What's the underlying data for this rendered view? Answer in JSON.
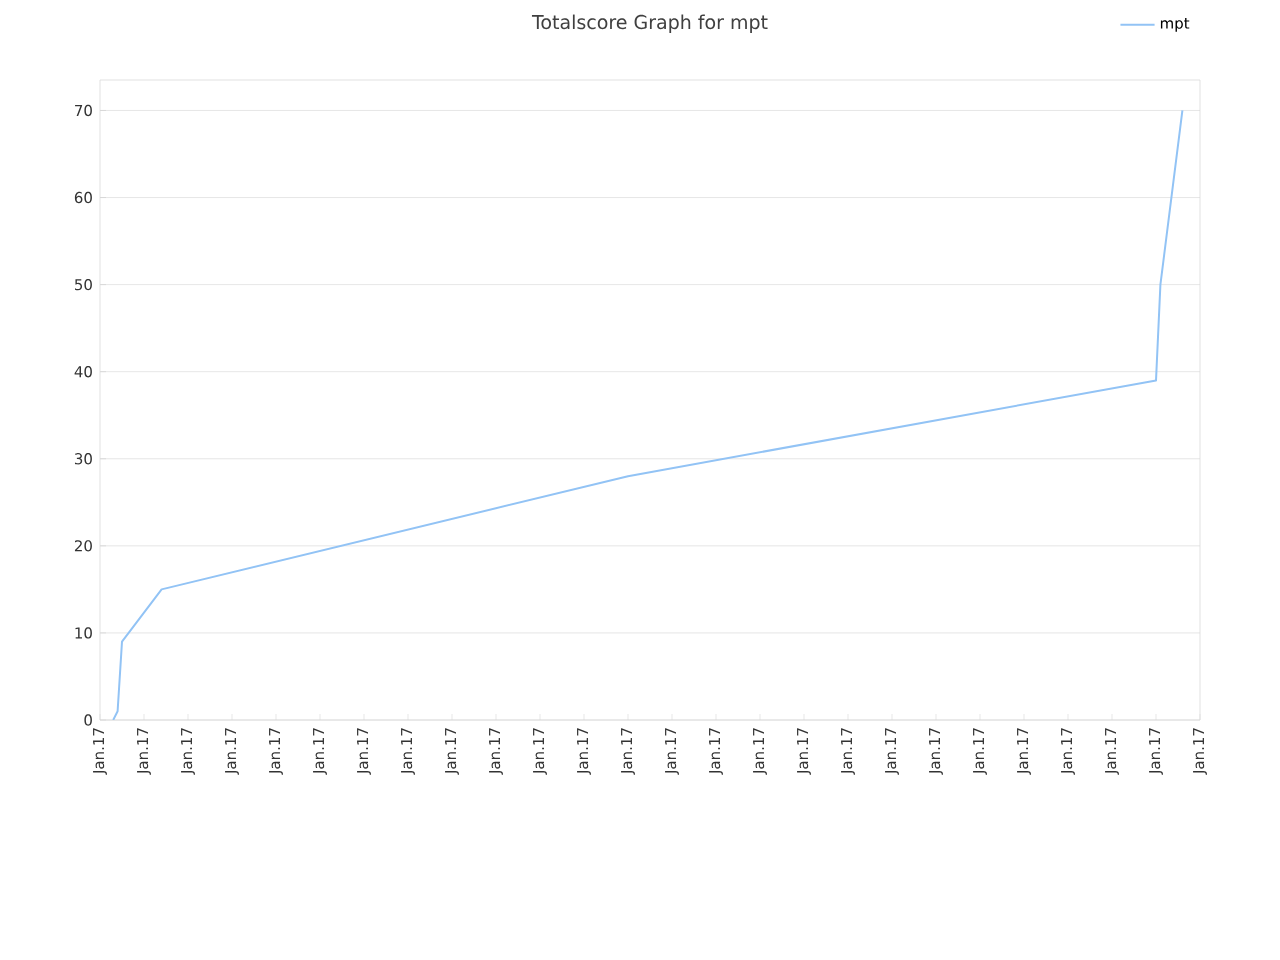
{
  "chart_data": {
    "type": "line",
    "title": "Totalscore Graph for mpt",
    "categories": [
      "Jan.17",
      null,
      null,
      null,
      null,
      null,
      null,
      null,
      null,
      null,
      "Jan.17",
      null,
      null,
      null,
      null,
      null,
      null,
      null,
      null,
      null,
      "Jan.17",
      null,
      null,
      null,
      null,
      null,
      null,
      null,
      null,
      null,
      "Jan.17",
      null,
      null,
      null,
      null,
      null,
      null,
      null,
      null,
      null,
      "Jan.17",
      null,
      null,
      null,
      null,
      null,
      null,
      null,
      null,
      null,
      "Jan.17",
      null,
      null,
      null,
      null,
      null,
      null,
      null,
      null,
      null,
      "Jan.17",
      null,
      null,
      null,
      null,
      null,
      null,
      null,
      null,
      null,
      "Jan.17",
      null,
      null,
      null,
      null,
      null,
      null,
      null,
      null,
      null,
      "Jan.17",
      null,
      null,
      null,
      null,
      null,
      null,
      null,
      null,
      null,
      "Jan.17",
      null,
      null,
      null,
      null,
      null,
      null,
      null,
      null,
      null,
      "Jan.17",
      null,
      null,
      null,
      null,
      null,
      null,
      null,
      null,
      null,
      "Jan.17",
      null,
      null,
      null,
      null,
      null,
      null,
      null,
      null,
      null,
      "Jan.17",
      null,
      null,
      null,
      null,
      null,
      null,
      null,
      null,
      null,
      "Jan.17",
      null,
      null,
      null,
      null,
      null,
      null,
      null,
      null,
      null,
      "Jan.17",
      null,
      null,
      null,
      null,
      null,
      null,
      null,
      null,
      null,
      "Jan.17",
      null,
      null,
      null,
      null,
      null,
      null,
      null,
      null,
      null,
      "Jan.17",
      null,
      null,
      null,
      null,
      null,
      null,
      null,
      null,
      null,
      "Jan.17",
      null,
      null,
      null,
      null,
      null,
      null,
      null,
      null,
      null,
      "Jan.17",
      null,
      null,
      null,
      null,
      null,
      null,
      null,
      null,
      null,
      "Jan.17",
      null,
      null,
      null,
      null,
      null,
      null,
      null,
      null,
      null,
      "Jan.17",
      null,
      null,
      null,
      null,
      null,
      null,
      null,
      null,
      null,
      "Jan.17",
      null,
      null,
      null,
      null,
      null,
      null,
      null,
      null,
      null,
      "Jan.17",
      null,
      null,
      null,
      null,
      null,
      null,
      null,
      null,
      null,
      "Jan.17",
      null,
      null,
      null,
      null,
      null,
      null,
      null,
      null,
      null,
      "Jan.17",
      null,
      null,
      null,
      null,
      null,
      null,
      null,
      null,
      null,
      "Jan.17"
    ],
    "series": [
      {
        "name": "mpt",
        "color": "#92c3f5",
        "values": [
          null,
          null,
          null,
          0,
          1,
          9,
          null,
          null,
          null,
          null,
          null,
          null,
          null,
          null,
          15,
          null,
          null,
          null,
          null,
          null,
          null,
          null,
          null,
          null,
          null,
          null,
          null,
          null,
          null,
          null,
          null,
          null,
          null,
          null,
          null,
          null,
          null,
          null,
          null,
          null,
          null,
          null,
          null,
          null,
          null,
          null,
          null,
          null,
          null,
          null,
          null,
          null,
          null,
          null,
          null,
          null,
          null,
          null,
          null,
          null,
          null,
          null,
          null,
          null,
          null,
          null,
          null,
          null,
          null,
          null,
          null,
          null,
          null,
          null,
          null,
          null,
          null,
          null,
          null,
          null,
          null,
          null,
          null,
          null,
          null,
          null,
          null,
          null,
          null,
          null,
          null,
          null,
          null,
          null,
          null,
          null,
          null,
          null,
          null,
          null,
          null,
          null,
          null,
          null,
          null,
          null,
          null,
          null,
          null,
          null,
          null,
          null,
          null,
          null,
          null,
          null,
          null,
          null,
          null,
          null,
          28,
          null,
          null,
          null,
          null,
          null,
          null,
          null,
          null,
          null,
          null,
          null,
          null,
          null,
          null,
          null,
          null,
          null,
          null,
          null,
          null,
          null,
          null,
          null,
          null,
          null,
          null,
          null,
          null,
          null,
          null,
          null,
          null,
          null,
          null,
          null,
          null,
          null,
          null,
          null,
          null,
          null,
          null,
          null,
          null,
          null,
          null,
          null,
          null,
          null,
          null,
          null,
          null,
          null,
          null,
          null,
          null,
          null,
          null,
          null,
          null,
          null,
          null,
          null,
          null,
          null,
          null,
          null,
          null,
          null,
          null,
          null,
          null,
          null,
          null,
          null,
          null,
          null,
          null,
          null,
          null,
          null,
          null,
          null,
          null,
          null,
          null,
          null,
          null,
          null,
          null,
          null,
          null,
          null,
          null,
          null,
          null,
          null,
          null,
          null,
          null,
          null,
          null,
          null,
          null,
          null,
          null,
          null,
          null,
          null,
          null,
          null,
          null,
          null,
          null,
          null,
          null,
          null,
          null,
          null,
          39,
          50,
          null,
          null,
          null,
          null,
          70,
          null,
          null,
          null,
          null
        ]
      }
    ],
    "ylim": [
      0,
      73.5
    ],
    "yticks": [
      0,
      10,
      20,
      30,
      40,
      50,
      60,
      70
    ],
    "grid": "y",
    "legend": "top right",
    "marker": "none",
    "line_style": "solid"
  }
}
